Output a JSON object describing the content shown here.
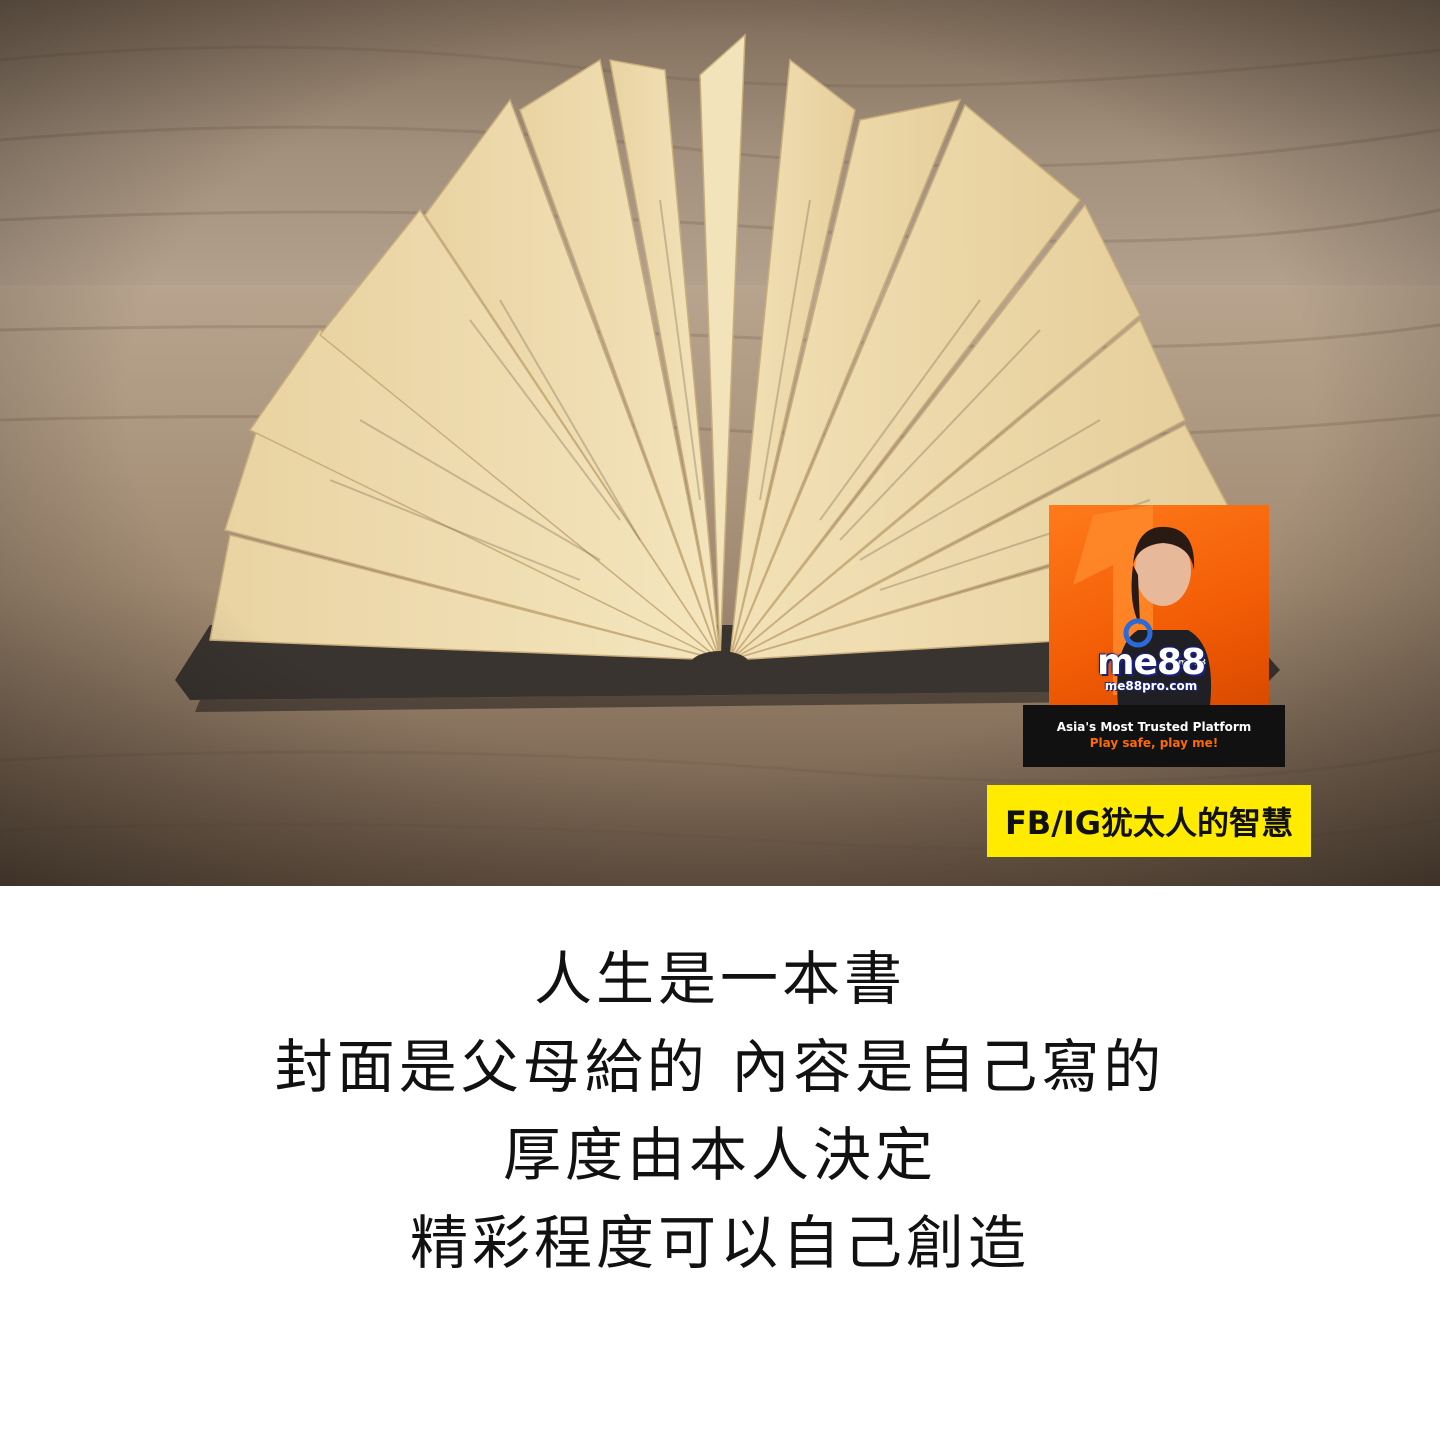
{
  "ad": {
    "brand": "me88",
    "url": "me88pro.com",
    "tagline": "Asia's Most Trusted Platform",
    "slogan": "Play safe, play me!",
    "shirt_logo": "me88"
  },
  "tag": {
    "text": "FB/IG犹太人的智慧"
  },
  "quote": {
    "lines": [
      "人生是一本書",
      "封面是父母給的 內容是自己寫的",
      "厚度由本人決定",
      "精彩程度可以自己創造"
    ]
  },
  "colors": {
    "tag_bg": "#ffeb00",
    "ad_orange": "#f25c05",
    "ad_bar": "#111111",
    "slogan": "#ff6a00"
  }
}
